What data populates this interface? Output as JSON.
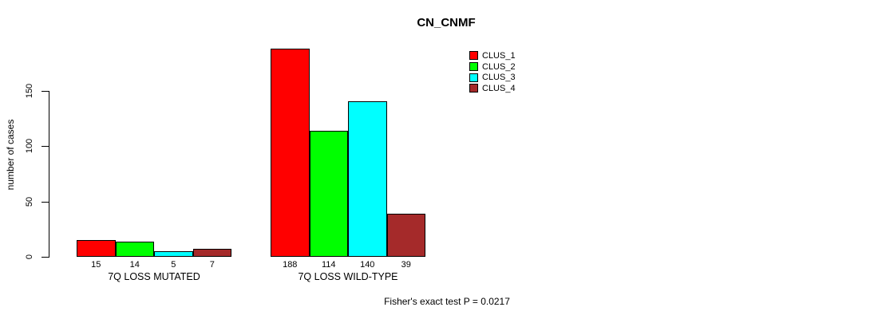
{
  "chart_data": {
    "type": "bar",
    "title": "CN_CNMF",
    "ylabel": "number of cases",
    "xlabel": "",
    "ylim": [
      0,
      190
    ],
    "yticks": [
      0,
      50,
      100,
      150
    ],
    "grid": false,
    "legend_position": "top-right-inside",
    "categories": [
      "7Q LOSS MUTATED",
      "7Q LOSS WILD-TYPE"
    ],
    "series": [
      {
        "name": "CLUS_1",
        "color": "#ff0000",
        "values": [
          15,
          188
        ]
      },
      {
        "name": "CLUS_2",
        "color": "#00ff00",
        "values": [
          14,
          114
        ]
      },
      {
        "name": "CLUS_3",
        "color": "#00ffff",
        "values": [
          5,
          140
        ]
      },
      {
        "name": "CLUS_4",
        "color": "#a52a2a",
        "values": [
          7,
          39
        ]
      }
    ],
    "bar_value_labels": [
      [
        15,
        14,
        5,
        7
      ],
      [
        188,
        114,
        140,
        39
      ]
    ],
    "annotation": "Fisher's exact test P = 0.0217"
  }
}
